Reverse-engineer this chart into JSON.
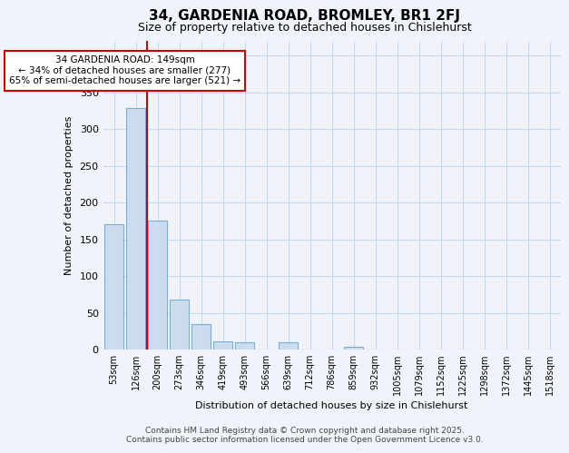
{
  "title1": "34, GARDENIA ROAD, BROMLEY, BR1 2FJ",
  "title2": "Size of property relative to detached houses in Chislehurst",
  "xlabel": "Distribution of detached houses by size in Chislehurst",
  "ylabel": "Number of detached properties",
  "categories": [
    "53sqm",
    "126sqm",
    "200sqm",
    "273sqm",
    "346sqm",
    "419sqm",
    "493sqm",
    "566sqm",
    "639sqm",
    "712sqm",
    "786sqm",
    "859sqm",
    "932sqm",
    "1005sqm",
    "1079sqm",
    "1152sqm",
    "1225sqm",
    "1298sqm",
    "1372sqm",
    "1445sqm",
    "1518sqm"
  ],
  "values": [
    170,
    328,
    175,
    68,
    34,
    11,
    10,
    0,
    10,
    0,
    0,
    4,
    0,
    0,
    0,
    0,
    0,
    0,
    0,
    0,
    0
  ],
  "bar_color": "#ccdcef",
  "bar_edge_color": "#7aadd4",
  "vline_color": "#cc0000",
  "vline_x_index": 1.5,
  "annotation_text": "34 GARDENIA ROAD: 149sqm\n← 34% of detached houses are smaller (277)\n65% of semi-detached houses are larger (521) →",
  "annotation_box_color": "#ffffff",
  "annotation_box_edge": "#cc0000",
  "bg_color": "#f0f4fa",
  "plot_bg_color": "#f0f4fa",
  "grid_color": "#c8d8ec",
  "footer": "Contains HM Land Registry data © Crown copyright and database right 2025.\nContains public sector information licensed under the Open Government Licence v3.0.",
  "ylim": [
    0,
    420
  ],
  "yticks": [
    0,
    50,
    100,
    150,
    200,
    250,
    300,
    350,
    400
  ],
  "title1_fontsize": 11,
  "title2_fontsize": 9
}
